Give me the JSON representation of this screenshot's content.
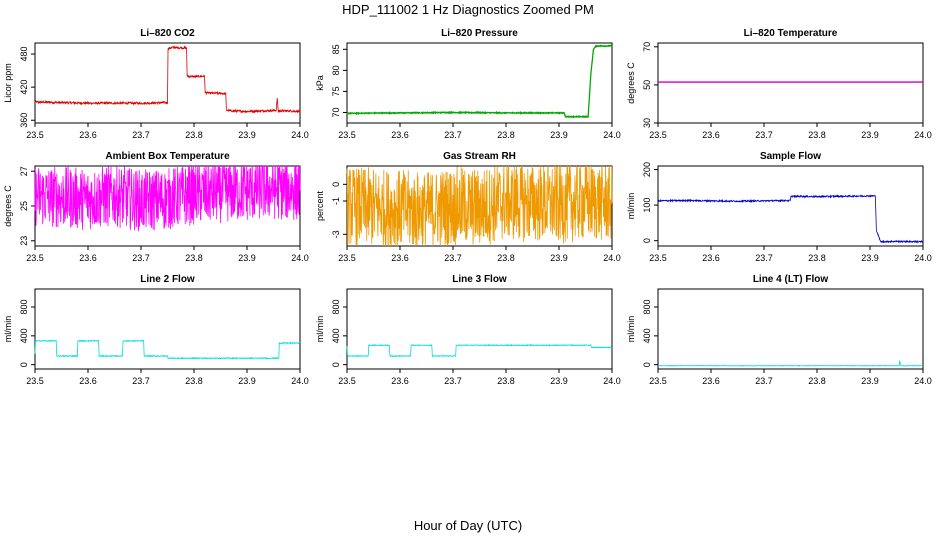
{
  "title": "HDP_111002  1 Hz Diagnostics Zoomed PM",
  "footer_xlabel": "Hour of Day (UTC)",
  "chart_data": [
    {
      "type": "line",
      "title": "Li–820 CO2",
      "ylabel": "Licor ppm",
      "color": "#dd0000",
      "xlim": [
        23.5,
        24.0
      ],
      "ylim": [
        355,
        500
      ],
      "xticks": [
        "23.5",
        "23.6",
        "23.7",
        "23.8",
        "23.9",
        "24.0"
      ],
      "yticks": [
        "360",
        "420",
        "480"
      ],
      "ytick_values": [
        360,
        420,
        480
      ],
      "series": [
        {
          "name": "CO2",
          "x": [
            23.5,
            23.55,
            23.6,
            23.65,
            23.7,
            23.75,
            23.751,
            23.76,
            23.786,
            23.787,
            23.8,
            23.82,
            23.821,
            23.83,
            23.85,
            23.86,
            23.861,
            23.87,
            23.9,
            23.93,
            23.955,
            23.957,
            23.959,
            23.96,
            23.98,
            24.0
          ],
          "y": [
            393,
            392,
            391,
            391,
            391,
            392,
            490,
            492,
            491,
            440,
            439,
            440,
            410,
            409,
            409,
            408,
            378,
            377,
            376,
            377,
            378,
            400,
            376,
            377,
            377,
            376
          ]
        }
      ],
      "noise": 2
    },
    {
      "type": "line",
      "title": "Li–820 Pressure",
      "ylabel": "kPa",
      "color": "#00aa00",
      "xlim": [
        23.5,
        24.0
      ],
      "ylim": [
        67.5,
        86.5
      ],
      "xticks": [
        "23.5",
        "23.6",
        "23.7",
        "23.8",
        "23.9",
        "24.0"
      ],
      "yticks": [
        "70",
        "75",
        "80",
        "85"
      ],
      "ytick_values": [
        70,
        75,
        80,
        85
      ],
      "series": [
        {
          "name": "Pressure",
          "x": [
            23.5,
            23.6,
            23.7,
            23.8,
            23.91,
            23.912,
            23.94,
            23.955,
            23.96,
            23.965,
            23.97,
            24.0
          ],
          "y": [
            69.8,
            69.9,
            70.0,
            69.9,
            69.9,
            69.0,
            69.0,
            69.0,
            79,
            85,
            85.8,
            85.8
          ]
        }
      ],
      "noise": 0.1
    },
    {
      "type": "line",
      "title": "Li–820 Temperature",
      "ylabel": "degrees C",
      "color": "#cc00cc",
      "xlim": [
        23.5,
        24.0
      ],
      "ylim": [
        30,
        72
      ],
      "xticks": [
        "23.5",
        "23.6",
        "23.7",
        "23.8",
        "23.9",
        "24.0"
      ],
      "yticks": [
        "30",
        "50",
        "70"
      ],
      "ytick_values": [
        30,
        50,
        70
      ],
      "series": [
        {
          "name": "Temperature",
          "x": [
            23.5,
            24.0
          ],
          "y": [
            51.5,
            51.5
          ]
        }
      ],
      "noise": 0
    },
    {
      "type": "line",
      "title": "Ambient Box Temperature",
      "ylabel": "degrees C",
      "color": "#ff00ff",
      "xlim": [
        23.5,
        24.0
      ],
      "ylim": [
        22.7,
        27.3
      ],
      "xticks": [
        "23.5",
        "23.6",
        "23.7",
        "23.8",
        "23.9",
        "24.0"
      ],
      "yticks": [
        "23",
        "25",
        "27"
      ],
      "ytick_values": [
        23,
        25,
        27
      ],
      "series": [
        {
          "name": "Ambient",
          "x": [
            23.5,
            23.55,
            23.6,
            23.65,
            23.7,
            23.75,
            23.8,
            23.85,
            23.9,
            23.95,
            24.0
          ],
          "y": [
            25.6,
            25.5,
            25.4,
            25.6,
            25.3,
            25.4,
            25.7,
            25.8,
            25.9,
            26.0,
            25.9
          ]
        }
      ],
      "noise": 1.8
    },
    {
      "type": "line",
      "title": "Gas Stream RH",
      "ylabel": "percent",
      "color": "#ee9900",
      "xlim": [
        23.5,
        24.0
      ],
      "ylim": [
        -3.7,
        1.1
      ],
      "xticks": [
        "23.5",
        "23.6",
        "23.7",
        "23.8",
        "23.9",
        "24.0"
      ],
      "yticks": [
        "-3",
        "-1",
        "0"
      ],
      "ytick_values": [
        -3,
        -1,
        0
      ],
      "series": [
        {
          "name": "RH",
          "x": [
            23.5,
            23.55,
            23.6,
            23.65,
            23.7,
            23.75,
            23.8,
            23.85,
            23.9,
            23.95,
            24.0
          ],
          "y": [
            -1.3,
            -1.4,
            -1.5,
            -1.6,
            -1.3,
            -1.4,
            -1.0,
            -1.1,
            -1.2,
            -1.0,
            -1.1
          ]
        }
      ],
      "noise": 2.4
    },
    {
      "type": "line",
      "title": "Sample Flow",
      "ylabel": "ml/min",
      "color": "#0000cc",
      "xlim": [
        23.5,
        24.0
      ],
      "ylim": [
        -15,
        210
      ],
      "xticks": [
        "23.5",
        "23.6",
        "23.7",
        "23.8",
        "23.9",
        "24.0"
      ],
      "yticks": [
        "0",
        "100",
        "200"
      ],
      "ytick_values": [
        0,
        100,
        200
      ],
      "series": [
        {
          "name": "Sample",
          "x": [
            23.5,
            23.55,
            23.6,
            23.65,
            23.7,
            23.75,
            23.751,
            23.8,
            23.85,
            23.91,
            23.912,
            23.92,
            23.95,
            24.0
          ],
          "y": [
            112,
            113,
            112,
            111,
            112,
            113,
            125,
            124,
            125,
            126,
            30,
            -3,
            -2,
            -3
          ]
        }
      ],
      "noise": 2
    },
    {
      "type": "line",
      "title": "Line 2 Flow",
      "ylabel": "ml/min",
      "color": "#00dddd",
      "xlim": [
        23.5,
        24.0
      ],
      "ylim": [
        -60,
        1050
      ],
      "xticks": [
        "23.5",
        "23.6",
        "23.7",
        "23.8",
        "23.9",
        "24.0"
      ],
      "yticks": [
        "0",
        "400",
        "800"
      ],
      "ytick_values": [
        0,
        400,
        800
      ],
      "series": [
        {
          "name": "Line2",
          "x": [
            23.5,
            23.501,
            23.54,
            23.541,
            23.58,
            23.581,
            23.62,
            23.621,
            23.665,
            23.666,
            23.705,
            23.706,
            23.75,
            23.751,
            23.85,
            23.96,
            23.961,
            24.0
          ],
          "y": [
            150,
            330,
            330,
            120,
            120,
            330,
            330,
            120,
            120,
            330,
            330,
            120,
            120,
            90,
            90,
            90,
            300,
            300
          ]
        }
      ],
      "noise": 6
    },
    {
      "type": "line",
      "title": "Line 3 Flow",
      "ylabel": "ml/min",
      "color": "#00dddd",
      "xlim": [
        23.5,
        24.0
      ],
      "ylim": [
        -60,
        1050
      ],
      "xticks": [
        "23.5",
        "23.6",
        "23.7",
        "23.8",
        "23.9",
        "24.0"
      ],
      "yticks": [
        "0",
        "400",
        "800"
      ],
      "ytick_values": [
        0,
        400,
        800
      ],
      "series": [
        {
          "name": "Line3",
          "x": [
            23.5,
            23.501,
            23.503,
            23.505,
            23.54,
            23.541,
            23.58,
            23.581,
            23.62,
            23.621,
            23.66,
            23.661,
            23.705,
            23.706,
            23.96,
            23.961,
            24.0
          ],
          "y": [
            260,
            130,
            120,
            120,
            120,
            270,
            270,
            120,
            120,
            270,
            270,
            120,
            120,
            270,
            270,
            240,
            240
          ]
        }
      ],
      "noise": 5
    },
    {
      "type": "line",
      "title": "Line 4 (LT) Flow",
      "ylabel": "ml/min",
      "color": "#00dddd",
      "xlim": [
        23.5,
        24.0
      ],
      "ylim": [
        -60,
        1050
      ],
      "xticks": [
        "23.5",
        "23.6",
        "23.7",
        "23.8",
        "23.9",
        "24.0"
      ],
      "yticks": [
        "0",
        "400",
        "800"
      ],
      "ytick_values": [
        0,
        400,
        800
      ],
      "series": [
        {
          "name": "Line4",
          "x": [
            23.5,
            23.6,
            23.7,
            23.8,
            23.9,
            23.955,
            23.956,
            23.958,
            23.96,
            24.0
          ],
          "y": [
            -15,
            -14,
            -15,
            -14,
            -15,
            -14,
            60,
            -14,
            -15,
            -14
          ]
        }
      ],
      "noise": 3
    }
  ]
}
